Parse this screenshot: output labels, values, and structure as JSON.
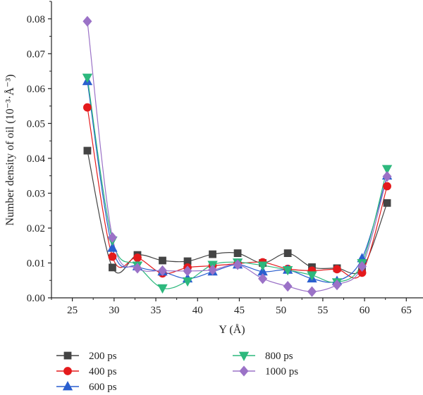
{
  "chart_data": {
    "type": "line",
    "xlabel": "Y (Å)",
    "ylabel": "Number density of oil (10⁻³·Å⁻³)",
    "xlim": [
      22.5,
      67
    ],
    "ylim": [
      0,
      0.085
    ],
    "xticks": [
      25,
      30,
      35,
      40,
      45,
      50,
      55,
      60,
      65
    ],
    "yticks": [
      0.0,
      0.01,
      0.02,
      0.03,
      0.04,
      0.05,
      0.06,
      0.07,
      0.08
    ],
    "x": [
      26.8,
      29.8,
      32.8,
      35.8,
      38.8,
      41.8,
      44.8,
      47.8,
      50.8,
      53.7,
      56.7,
      59.7,
      62.7
    ],
    "series": [
      {
        "name": "200 ps",
        "color": "#444444",
        "marker": "square",
        "values": [
          0.0422,
          0.0087,
          0.0123,
          0.0107,
          0.0105,
          0.0125,
          0.0128,
          0.01,
          0.0128,
          0.0088,
          0.0085,
          0.0083,
          0.0272
        ]
      },
      {
        "name": "400 ps",
        "color": "#e41a1c",
        "marker": "circle",
        "values": [
          0.0546,
          0.0118,
          0.0115,
          0.007,
          0.0087,
          0.0092,
          0.0098,
          0.0102,
          0.0083,
          0.0078,
          0.0082,
          0.0072,
          0.032
        ]
      },
      {
        "name": "600 ps",
        "color": "#2a5fcf",
        "marker": "triangle-up",
        "values": [
          0.0621,
          0.0143,
          0.009,
          0.0075,
          0.0055,
          0.0075,
          0.0095,
          0.0075,
          0.008,
          0.0055,
          0.0048,
          0.0113,
          0.035
        ]
      },
      {
        "name": "800 ps",
        "color": "#2db87d",
        "marker": "triangle-down",
        "values": [
          0.0632,
          0.0165,
          0.0093,
          0.0028,
          0.0048,
          0.0095,
          0.0102,
          0.0093,
          0.008,
          0.0065,
          0.0045,
          0.01,
          0.037
        ]
      },
      {
        "name": "1000 ps",
        "color": "#9b72c7",
        "marker": "diamond",
        "values": [
          0.0793,
          0.0173,
          0.0085,
          0.0078,
          0.0077,
          0.008,
          0.0095,
          0.0055,
          0.0033,
          0.0018,
          0.0037,
          0.009,
          0.0348
        ]
      }
    ],
    "legend_position": "bottom",
    "grid": false
  }
}
